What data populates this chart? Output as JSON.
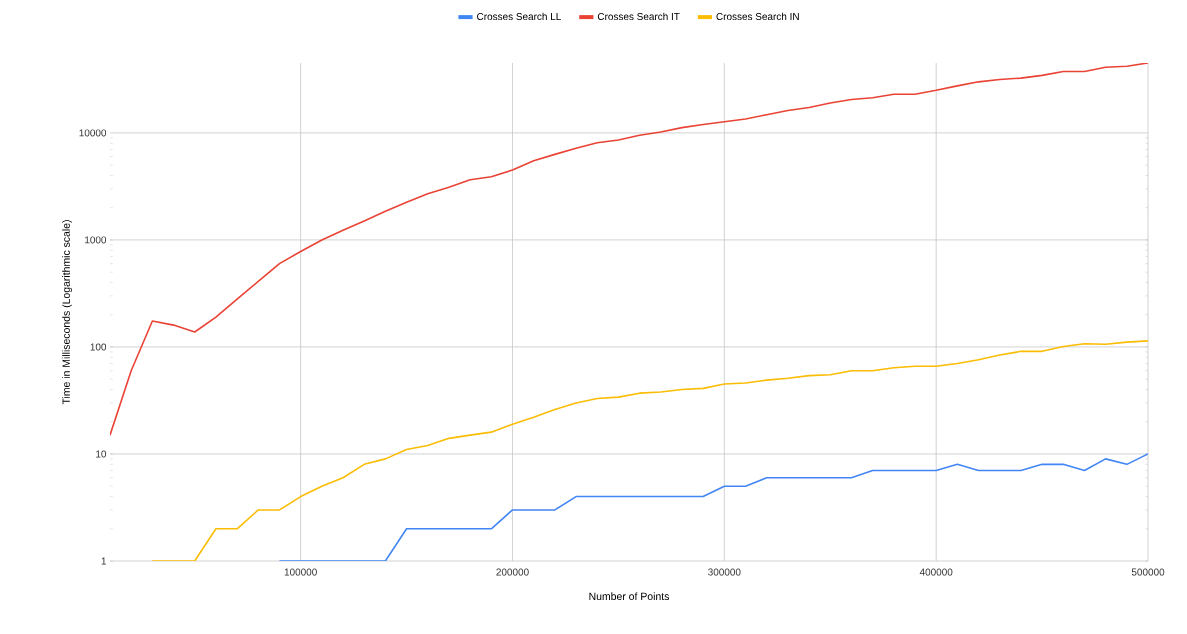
{
  "chart_data": {
    "type": "line",
    "xlabel": "Number of Points",
    "ylabel": "Time in Milliseconds (Logarithmic scale)",
    "x": [
      10000,
      20000,
      30000,
      40000,
      50000,
      60000,
      70000,
      80000,
      90000,
      100000,
      110000,
      120000,
      130000,
      140000,
      150000,
      160000,
      170000,
      180000,
      190000,
      200000,
      210000,
      220000,
      230000,
      240000,
      250000,
      260000,
      270000,
      280000,
      290000,
      300000,
      310000,
      320000,
      330000,
      340000,
      350000,
      360000,
      370000,
      380000,
      390000,
      400000,
      410000,
      420000,
      430000,
      440000,
      450000,
      460000,
      470000,
      480000,
      490000,
      500000
    ],
    "series": [
      {
        "name": "Crosses Search LL",
        "color": "#4285f4",
        "values": [
          null,
          null,
          null,
          null,
          null,
          null,
          null,
          null,
          1,
          1,
          1,
          1,
          1,
          1,
          2,
          2,
          2,
          2,
          2,
          3,
          3,
          3,
          4,
          4,
          4,
          4,
          4,
          4,
          4,
          5,
          5,
          6,
          6,
          6,
          6,
          6,
          7,
          7,
          7,
          7,
          8,
          7,
          7,
          7,
          8,
          8,
          7,
          9,
          8,
          10
        ]
      },
      {
        "name": "Crosses Search IT",
        "color": "#ea4335",
        "values": [
          15,
          60,
          175,
          160,
          138,
          190,
          280,
          410,
          600,
          780,
          1000,
          1230,
          1500,
          1850,
          2250,
          2700,
          3100,
          3650,
          3900,
          4500,
          5500,
          6300,
          7200,
          8100,
          8600,
          9500,
          10200,
          11200,
          12000,
          12700,
          13500,
          14800,
          16200,
          17300,
          19000,
          20500,
          21300,
          23000,
          23000,
          25000,
          27500,
          30000,
          31500,
          32500,
          34500,
          37500,
          37500,
          41000,
          42000,
          45000
        ]
      },
      {
        "name": "Crosses Search IN",
        "color": "#fbbc04",
        "values": [
          null,
          null,
          1,
          1,
          1,
          2,
          2,
          3,
          3,
          4,
          5,
          6,
          8,
          9,
          11,
          12,
          14,
          15,
          16,
          19,
          22,
          26,
          30,
          33,
          34,
          37,
          38,
          40,
          41,
          45,
          46,
          49,
          51,
          54,
          55,
          60,
          60,
          64,
          66,
          66,
          70,
          76,
          84,
          91,
          91,
          101,
          107,
          106,
          111,
          114
        ]
      }
    ],
    "log": "y",
    "xlim": [
      10000,
      500000
    ],
    "ylim": [
      1,
      45000
    ],
    "xticks": [
      100000,
      200000,
      300000,
      400000,
      500000
    ],
    "yticks": [
      1,
      10,
      100,
      1000,
      10000
    ],
    "grid": true,
    "legend": "top"
  }
}
